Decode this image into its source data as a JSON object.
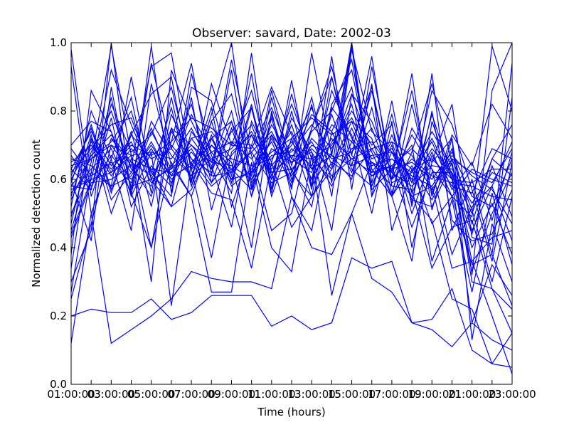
{
  "chart_data": {
    "type": "line",
    "title": "Observer: savard, Date: 2002-03",
    "xlabel": "Time (hours)",
    "ylabel": "Normalized detection count",
    "x": [
      "01:00:00",
      "02:00:00",
      "03:00:00",
      "04:00:00",
      "05:00:00",
      "06:00:00",
      "07:00:00",
      "08:00:00",
      "09:00:00",
      "10:00:00",
      "11:00:00",
      "12:00:00",
      "13:00:00",
      "14:00:00",
      "15:00:00",
      "16:00:00",
      "17:00:00",
      "18:00:00",
      "19:00:00",
      "20:00:00",
      "21:00:00",
      "22:00:00",
      "23:00:00"
    ],
    "xtick_labels": [
      "01:00:00",
      "03:00:00",
      "05:00:00",
      "07:00:00",
      "09:00:00",
      "11:00:00",
      "13:00:00",
      "15:00:00",
      "17:00:00",
      "19:00:00",
      "21:00:00",
      "23:00:00"
    ],
    "xtick_overlap_labels": [
      "03",
      "05",
      "07",
      "09",
      "11",
      "13",
      "15",
      "17",
      "19",
      "21",
      "23"
    ],
    "ylim": [
      0.0,
      1.0
    ],
    "ytick_labels": [
      "0.0",
      "0.2",
      "0.4",
      "0.6",
      "0.8",
      "1.0"
    ],
    "grid": false,
    "series_color": "#0000ff",
    "series": [
      {
        "values": [
          0.2,
          0.22,
          0.21,
          0.21,
          0.25,
          0.19,
          0.21,
          0.26,
          0.26,
          0.26,
          0.17,
          0.2,
          0.16,
          0.18,
          0.37,
          0.34,
          0.36,
          0.18,
          0.16,
          0.11,
          0.18,
          0.13,
          0.1
        ]
      },
      {
        "values": [
          0.12,
          0.5,
          0.12,
          0.16,
          0.2,
          0.25,
          0.33,
          0.31,
          0.3,
          0.3,
          0.28,
          0.55,
          0.4,
          0.38,
          0.5,
          0.31,
          0.27,
          0.18,
          0.19,
          0.28,
          0.1,
          0.06,
          0.15
        ]
      },
      {
        "values": [
          0.25,
          0.47,
          0.7,
          0.67,
          0.4,
          0.65,
          0.55,
          0.27,
          0.27,
          0.65,
          0.4,
          0.33,
          0.67,
          0.26,
          0.5,
          0.65,
          0.62,
          0.55,
          0.48,
          0.25,
          0.22,
          0.06,
          0.05
        ]
      },
      {
        "values": [
          0.3,
          0.45,
          1.0,
          0.55,
          0.68,
          0.23,
          0.65,
          0.56,
          0.54,
          0.34,
          0.65,
          0.46,
          0.55,
          0.63,
          1.0,
          0.55,
          0.68,
          0.55,
          0.58,
          0.34,
          0.36,
          0.2,
          0.03
        ]
      },
      {
        "values": [
          0.45,
          0.65,
          0.99,
          0.67,
          0.3,
          0.92,
          0.77,
          0.65,
          0.8,
          0.55,
          0.73,
          0.65,
          0.68,
          0.45,
          0.85,
          0.68,
          0.55,
          0.68,
          0.88,
          0.65,
          0.3,
          0.28,
          0.22
        ]
      },
      {
        "values": [
          0.5,
          0.62,
          0.92,
          0.76,
          0.62,
          0.55,
          0.87,
          0.83,
          0.61,
          0.82,
          0.55,
          0.72,
          0.55,
          0.82,
          0.92,
          0.63,
          0.55,
          0.36,
          0.77,
          0.6,
          0.18,
          0.35,
          0.26
        ]
      },
      {
        "values": [
          0.6,
          0.42,
          0.87,
          0.56,
          0.4,
          0.75,
          0.7,
          0.63,
          0.95,
          0.67,
          0.45,
          0.5,
          0.75,
          0.9,
          0.67,
          0.96,
          0.58,
          0.57,
          0.34,
          0.46,
          0.48,
          0.28,
          0.15
        ]
      },
      {
        "values": [
          0.63,
          0.57,
          0.82,
          0.68,
          0.73,
          0.87,
          0.63,
          0.37,
          0.68,
          0.73,
          0.6,
          0.85,
          0.63,
          0.67,
          0.6,
          0.88,
          0.45,
          0.63,
          0.47,
          0.55,
          0.35,
          0.38,
          0.23
        ]
      },
      {
        "values": [
          0.65,
          0.7,
          0.63,
          0.7,
          0.67,
          0.71,
          0.78,
          0.75,
          0.7,
          0.86,
          0.62,
          0.63,
          0.52,
          0.81,
          0.73,
          0.5,
          0.77,
          0.4,
          0.65,
          0.72,
          0.13,
          0.47,
          0.3
        ]
      },
      {
        "values": [
          0.7,
          0.77,
          0.74,
          0.58,
          0.6,
          0.63,
          0.79,
          0.68,
          0.6,
          0.62,
          0.68,
          0.72,
          0.78,
          0.73,
          0.77,
          0.62,
          0.64,
          0.46,
          0.62,
          0.62,
          0.4,
          0.53,
          0.38
        ]
      },
      {
        "values": [
          0.98,
          0.55,
          0.72,
          0.64,
          0.55,
          0.74,
          0.66,
          0.58,
          0.63,
          0.68,
          0.59,
          0.62,
          0.55,
          0.65,
          0.61,
          0.69,
          0.71,
          0.54,
          0.52,
          0.65,
          0.36,
          0.43,
          0.45
        ]
      },
      {
        "values": [
          0.47,
          0.72,
          0.5,
          0.66,
          0.63,
          0.52,
          0.57,
          0.7,
          0.65,
          0.4,
          0.8,
          0.55,
          0.45,
          0.74,
          0.87,
          0.57,
          0.63,
          0.7,
          0.36,
          0.54,
          0.27,
          0.56,
          0.35
        ]
      },
      {
        "values": [
          0.55,
          0.73,
          0.54,
          0.62,
          0.7,
          0.61,
          0.72,
          0.64,
          0.46,
          0.77,
          0.65,
          0.82,
          0.66,
          0.7,
          0.8,
          0.7,
          0.76,
          0.53,
          0.8,
          0.48,
          0.42,
          0.44,
          0.57
        ]
      },
      {
        "values": [
          0.52,
          0.8,
          0.66,
          0.45,
          0.88,
          0.64,
          0.55,
          0.72,
          0.77,
          0.55,
          0.84,
          0.62,
          0.74,
          0.8,
          0.95,
          0.63,
          0.55,
          0.64,
          0.54,
          0.66,
          0.51,
          0.3,
          0.55
        ]
      },
      {
        "values": [
          0.58,
          0.57,
          0.78,
          0.52,
          0.64,
          0.58,
          0.84,
          0.51,
          0.71,
          0.66,
          0.73,
          0.59,
          0.82,
          0.55,
          0.98,
          0.74,
          0.68,
          0.6,
          0.72,
          0.6,
          0.44,
          0.64,
          0.49
        ]
      },
      {
        "values": [
          0.43,
          0.59,
          0.6,
          0.64,
          0.93,
          0.97,
          0.63,
          0.81,
          0.52,
          0.7,
          0.87,
          0.73,
          0.6,
          0.86,
          0.72,
          0.65,
          0.58,
          0.57,
          0.79,
          0.61,
          0.33,
          0.5,
          0.62
        ]
      },
      {
        "values": [
          0.64,
          0.66,
          0.71,
          0.8,
          0.6,
          0.52,
          0.74,
          0.66,
          0.62,
          0.91,
          0.57,
          0.78,
          0.68,
          0.58,
          0.71,
          0.87,
          0.6,
          0.73,
          0.63,
          0.38,
          0.52,
          0.58,
          0.71
        ]
      },
      {
        "values": [
          0.61,
          0.75,
          0.56,
          0.73,
          0.66,
          0.69,
          0.61,
          0.77,
          0.85,
          0.61,
          0.76,
          0.66,
          0.62,
          0.79,
          0.63,
          0.58,
          0.73,
          0.59,
          0.86,
          0.76,
          0.57,
          0.36,
          0.65
        ]
      },
      {
        "values": [
          0.69,
          0.61,
          0.65,
          0.59,
          0.74,
          0.63,
          0.69,
          0.59,
          0.67,
          0.74,
          0.63,
          0.7,
          0.81,
          0.64,
          0.77,
          0.72,
          0.55,
          0.82,
          0.56,
          0.69,
          0.47,
          0.66,
          0.76
        ]
      },
      {
        "values": [
          0.62,
          0.69,
          0.76,
          0.78,
          0.62,
          0.81,
          0.58,
          0.73,
          0.58,
          0.63,
          0.71,
          0.58,
          0.75,
          0.93,
          0.67,
          0.61,
          0.66,
          0.62,
          0.71,
          0.57,
          0.65,
          0.48,
          0.68
        ]
      },
      {
        "values": [
          0.57,
          0.6,
          0.62,
          0.67,
          0.68,
          0.66,
          0.75,
          0.63,
          0.74,
          0.81,
          0.61,
          0.76,
          0.58,
          0.68,
          0.85,
          0.77,
          0.62,
          0.58,
          0.64,
          0.63,
          0.53,
          0.62,
          0.59
        ]
      },
      {
        "values": [
          0.66,
          0.64,
          0.58,
          0.61,
          0.71,
          0.6,
          0.65,
          0.7,
          0.63,
          0.57,
          0.69,
          0.65,
          0.71,
          0.61,
          0.66,
          0.69,
          0.6,
          0.66,
          0.61,
          0.59,
          0.58,
          0.55,
          0.54
        ]
      },
      {
        "values": [
          0.49,
          0.68,
          0.8,
          0.63,
          0.58,
          0.75,
          0.6,
          0.79,
          1.0,
          0.59,
          0.67,
          0.68,
          0.76,
          0.69,
          0.82,
          0.58,
          0.7,
          0.5,
          0.67,
          0.58,
          0.56,
          0.69,
          0.66
        ]
      },
      {
        "values": [
          0.56,
          0.63,
          0.69,
          0.56,
          0.77,
          0.67,
          0.61,
          0.66,
          0.69,
          0.76,
          0.6,
          0.69,
          0.64,
          0.76,
          0.71,
          0.64,
          0.66,
          0.61,
          0.58,
          0.67,
          0.61,
          0.57,
          0.47
        ]
      },
      {
        "values": [
          0.6,
          0.71,
          0.61,
          0.69,
          0.63,
          0.62,
          0.68,
          0.61,
          0.62,
          0.68,
          0.74,
          0.63,
          0.69,
          0.63,
          0.75,
          0.61,
          0.64,
          0.69,
          0.63,
          0.55,
          0.63,
          0.6,
          0.58
        ]
      },
      {
        "values": [
          0.59,
          0.76,
          0.57,
          0.74,
          0.52,
          0.79,
          0.66,
          0.62,
          0.77,
          0.62,
          0.79,
          0.6,
          0.72,
          0.66,
          0.68,
          0.75,
          0.59,
          0.62,
          0.74,
          0.64,
          0.45,
          0.58,
          0.42
        ]
      },
      {
        "values": [
          0.67,
          0.58,
          0.67,
          0.6,
          0.69,
          0.59,
          0.72,
          0.74,
          0.66,
          0.64,
          0.66,
          0.74,
          0.6,
          0.71,
          0.78,
          0.66,
          0.69,
          0.59,
          0.69,
          0.62,
          0.5,
          0.66,
          0.61
        ]
      },
      {
        "values": [
          0.54,
          0.67,
          0.73,
          0.65,
          0.61,
          0.7,
          0.63,
          0.68,
          0.71,
          0.7,
          0.62,
          0.67,
          0.66,
          0.6,
          0.69,
          0.71,
          0.63,
          0.65,
          0.6,
          0.68,
          0.55,
          0.52,
          0.66
        ]
      },
      {
        "values": [
          0.63,
          0.74,
          0.64,
          0.71,
          0.59,
          0.64,
          0.7,
          0.65,
          0.64,
          0.6,
          0.72,
          0.61,
          0.7,
          0.67,
          0.64,
          0.67,
          0.68,
          0.63,
          0.66,
          0.6,
          0.59,
          0.63,
          0.63
        ]
      },
      {
        "values": [
          0.58,
          0.66,
          0.7,
          0.62,
          0.75,
          0.61,
          0.64,
          0.72,
          0.6,
          0.73,
          0.64,
          0.71,
          0.63,
          0.72,
          0.66,
          0.62,
          0.71,
          0.67,
          0.57,
          0.66,
          0.62,
          0.59,
          0.69
        ]
      },
      {
        "values": [
          0.44,
          0.6,
          0.84,
          0.57,
          0.94,
          0.69,
          0.82,
          0.59,
          0.75,
          0.58,
          0.86,
          0.64,
          0.84,
          0.59,
          0.99,
          0.55,
          0.83,
          0.52,
          0.91,
          0.45,
          0.6,
          0.38,
          0.84
        ]
      },
      {
        "values": [
          0.34,
          0.72,
          0.62,
          0.73,
          0.85,
          0.9,
          0.59,
          0.88,
          0.7,
          0.69,
          0.81,
          0.66,
          0.79,
          0.74,
          0.62,
          0.81,
          0.56,
          0.75,
          0.65,
          0.82,
          0.43,
          0.41,
          0.94
        ]
      },
      {
        "values": [
          0.93,
          0.5,
          0.66,
          0.84,
          0.56,
          0.84,
          0.58,
          0.77,
          0.59,
          0.81,
          0.56,
          0.8,
          0.57,
          0.9,
          0.64,
          0.86,
          0.6,
          0.91,
          0.51,
          0.72,
          0.32,
          0.86,
          1.0
        ]
      },
      {
        "values": [
          0.27,
          0.62,
          0.58,
          0.9,
          0.6,
          0.71,
          0.94,
          0.61,
          0.92,
          0.57,
          0.78,
          0.57,
          0.97,
          0.67,
          1.0,
          0.59,
          0.79,
          0.56,
          0.68,
          0.55,
          0.49,
          0.99,
          0.8
        ]
      },
      {
        "values": [
          0.38,
          0.86,
          0.74,
          0.55,
          0.99,
          0.56,
          0.91,
          0.67,
          0.56,
          0.97,
          0.57,
          0.89,
          0.58,
          0.96,
          0.57,
          0.93,
          0.62,
          0.86,
          0.55,
          0.73,
          0.64,
          0.82,
          0.72
        ]
      }
    ]
  }
}
